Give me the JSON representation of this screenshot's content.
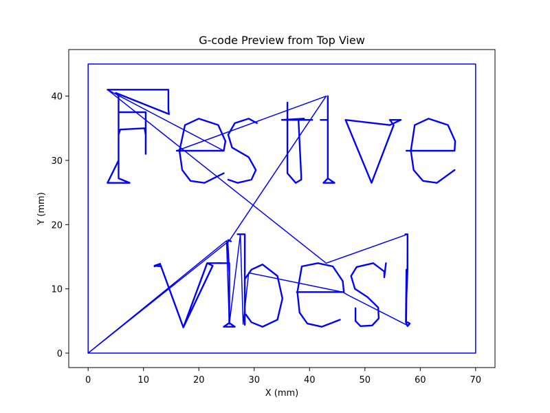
{
  "chart_data": {
    "type": "line",
    "title": "G-code Preview from Top View",
    "xlabel": "X (mm)",
    "ylabel": "Y (mm)",
    "xlim": [
      -3.5,
      73.5
    ],
    "ylim": [
      -2.25,
      47.25
    ],
    "xticks": [
      0,
      10,
      20,
      30,
      40,
      50,
      60,
      70
    ],
    "yticks": [
      0,
      10,
      20,
      30,
      40
    ],
    "grid": false,
    "line_color": "#0000ff",
    "series": [
      {
        "part": "border",
        "x": [
          0,
          70,
          70,
          0,
          0
        ],
        "y": [
          0,
          0,
          45,
          45,
          0
        ]
      },
      {
        "part": "travel-moves",
        "x": [
          0,
          25,
          25.5,
          27.5,
          28,
          29,
          46,
          47,
          57.5,
          57.7,
          43,
          3.5,
          3.5,
          24.5,
          16,
          43,
          25.5,
          0
        ],
        "y": [
          0,
          17.5,
          4.5,
          18.5,
          4.5,
          12.5,
          9.5,
          9,
          4.4,
          18.5,
          14,
          41,
          41,
          31.5,
          31.5,
          40,
          17.5,
          0
        ]
      },
      {
        "part": "F",
        "x": [
          3.5,
          14.5,
          14.5,
          14.5,
          14.6,
          5,
          5.5,
          5.5,
          5.5,
          3.5,
          7.5,
          5.5,
          5.5,
          5.8,
          10.2,
          10.4,
          10.4,
          10.4,
          5.5,
          5.5
        ],
        "y": [
          41,
          41,
          40.5,
          38,
          37.2,
          40.5,
          40,
          36,
          30,
          26.5,
          26.5,
          27.2,
          34,
          34.8,
          35,
          34,
          31,
          37.5,
          37.5,
          34
        ]
      },
      {
        "part": "e",
        "x": [
          16,
          24.5,
          24.8,
          23.5,
          20,
          17.5,
          16.5,
          17,
          18.5,
          21,
          24.5
        ],
        "y": [
          31.5,
          31.5,
          33,
          35.5,
          36.5,
          35.5,
          31.5,
          28.5,
          26.8,
          26.5,
          28
        ]
      },
      {
        "part": "s",
        "x": [
          30.5,
          29,
          26.5,
          25.3,
          26,
          29,
          30.3,
          29.5,
          27,
          25.3
        ],
        "y": [
          35.8,
          36.5,
          35.8,
          34,
          32,
          30.5,
          28.5,
          27,
          26.5,
          27
        ]
      },
      {
        "part": "t",
        "x": [
          36,
          36,
          36,
          37.5,
          38.5,
          38.5,
          38,
          39,
          35,
          40.5
        ],
        "y": [
          39,
          29,
          28,
          26.5,
          27,
          27.5,
          36.3,
          36.5,
          36.3,
          36.3
        ]
      },
      {
        "part": "i",
        "x": [
          42,
          43.3,
          43.3,
          42.5,
          44.5,
          43.3,
          43.3,
          43.3
        ],
        "y": [
          36.3,
          36.3,
          27.2,
          26.5,
          26.5,
          27.2,
          34.7,
          40
        ]
      },
      {
        "part": "v",
        "x": [
          46.5,
          51.2,
          55.2,
          54.5,
          56.5,
          54.5,
          46.5,
          51.2
        ],
        "y": [
          36.3,
          26.5,
          35.5,
          36.3,
          36.3,
          35.5,
          36.3,
          26.5
        ]
      },
      {
        "part": "e-final",
        "x": [
          57.5,
          66.2,
          66.3,
          65,
          61.5,
          59,
          58.3,
          58.8,
          60.5,
          63,
          66.2
        ],
        "y": [
          31.5,
          31.5,
          33,
          35.5,
          36.5,
          35.5,
          31.5,
          28.5,
          26.8,
          26.5,
          28.5
        ]
      },
      {
        "part": "v2",
        "x": [
          12,
          13,
          17.2,
          22.5,
          21.5,
          24,
          21.5,
          17.2,
          13,
          12,
          13.2
        ],
        "y": [
          13.5,
          13.9,
          4,
          13.6,
          14,
          14,
          14,
          4,
          13.9,
          13.6,
          13.5
        ]
      },
      {
        "part": "i2",
        "x": [
          23.5,
          25.5,
          25.5,
          24.5,
          26.5,
          25.5,
          25.5,
          25.2,
          25.3,
          25.8
        ],
        "y": [
          14,
          14,
          4.7,
          4.1,
          4.1,
          4.7,
          12.5,
          17.1,
          17.6,
          17.4
        ]
      },
      {
        "part": "b",
        "x": [
          27,
          28.3,
          28.3,
          28.3,
          29.5,
          31.5,
          34.2,
          35.1,
          34.2,
          31.5,
          29.5,
          28.5
        ],
        "y": [
          18.5,
          18.5,
          4.4,
          11.5,
          13,
          13.8,
          12,
          8.5,
          5.2,
          4.1,
          4.8,
          6
        ]
      },
      {
        "part": "e2",
        "x": [
          37.7,
          46.2,
          46,
          44.2,
          41.5,
          38.6,
          37.8,
          38.2,
          39.6,
          42.2,
          45.5
        ],
        "y": [
          9.5,
          9.5,
          11.2,
          13.5,
          14,
          13.5,
          9.5,
          6.3,
          4.6,
          4.1,
          5.2
        ]
      },
      {
        "part": "s2",
        "x": [
          53.8,
          53.5,
          53.5,
          51.5,
          48.5,
          47.5,
          48.2,
          50.5,
          52.4,
          52.5,
          51.3,
          49.2,
          48.3,
          48.3
        ],
        "y": [
          14,
          11.8,
          12.7,
          14,
          13.4,
          12,
          10,
          8.7,
          7.1,
          5.4,
          4.3,
          4.2,
          5,
          7
        ]
      },
      {
        "part": "exclamation",
        "x": [
          57.3,
          57.7,
          57.7,
          57.5,
          57.5,
          57.4,
          57.7,
          58.1,
          57.7
        ],
        "y": [
          18.5,
          18.5,
          13,
          8.8,
          13,
          4.8,
          4.2,
          4.6,
          4.8
        ]
      }
    ]
  }
}
